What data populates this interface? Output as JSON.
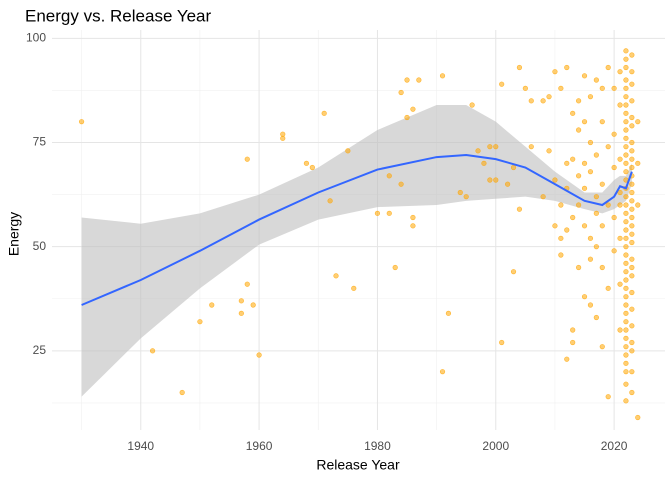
{
  "chart_data": {
    "type": "scatter",
    "title": "Energy vs. Release Year",
    "x_label": "Release Year",
    "y_label": "Energy",
    "xlim": [
      1925,
      2028.6
    ],
    "ylim": [
      6,
      102
    ],
    "xticks": [
      1940,
      1960,
      1980,
      2000,
      2020
    ],
    "yticks": [
      25,
      50,
      75,
      100
    ],
    "x_minor_grid": [
      1930,
      1950,
      1970,
      1990,
      2010
    ],
    "y_minor_grid": [
      12.5,
      37.5,
      62.5,
      87.5
    ],
    "grid": true,
    "point_color": "#FFA500",
    "line_color": "#3366FF",
    "band_color": "#BEBEBE",
    "points": [
      {
        "x": 1930,
        "y": 80
      },
      {
        "x": 1942,
        "y": 25
      },
      {
        "x": 1947,
        "y": 15
      },
      {
        "x": 1950,
        "y": 32
      },
      {
        "x": 1952,
        "y": 36
      },
      {
        "x": 1957,
        "y": 37
      },
      {
        "x": 1957,
        "y": 34
      },
      {
        "x": 1958,
        "y": 41
      },
      {
        "x": 1958,
        "y": 71
      },
      {
        "x": 1959,
        "y": 36
      },
      {
        "x": 1960,
        "y": 24
      },
      {
        "x": 1964,
        "y": 77
      },
      {
        "x": 1964,
        "y": 76
      },
      {
        "x": 1968,
        "y": 70
      },
      {
        "x": 1969,
        "y": 69
      },
      {
        "x": 1971,
        "y": 82
      },
      {
        "x": 1972,
        "y": 61
      },
      {
        "x": 1973,
        "y": 43
      },
      {
        "x": 1975,
        "y": 73
      },
      {
        "x": 1976,
        "y": 40
      },
      {
        "x": 1980,
        "y": 58
      },
      {
        "x": 1982,
        "y": 67
      },
      {
        "x": 1982,
        "y": 58
      },
      {
        "x": 1983,
        "y": 45
      },
      {
        "x": 1984,
        "y": 65
      },
      {
        "x": 1984,
        "y": 87
      },
      {
        "x": 1985,
        "y": 90
      },
      {
        "x": 1985,
        "y": 81
      },
      {
        "x": 1986,
        "y": 57
      },
      {
        "x": 1986,
        "y": 55
      },
      {
        "x": 1986,
        "y": 83
      },
      {
        "x": 1987,
        "y": 90
      },
      {
        "x": 1991,
        "y": 91
      },
      {
        "x": 1991,
        "y": 20
      },
      {
        "x": 1992,
        "y": 34
      },
      {
        "x": 1994,
        "y": 63
      },
      {
        "x": 1995,
        "y": 62
      },
      {
        "x": 1996,
        "y": 84
      },
      {
        "x": 1997,
        "y": 73
      },
      {
        "x": 1998,
        "y": 70
      },
      {
        "x": 1999,
        "y": 74
      },
      {
        "x": 1999,
        "y": 66
      },
      {
        "x": 2000,
        "y": 66
      },
      {
        "x": 2000,
        "y": 74
      },
      {
        "x": 2001,
        "y": 27
      },
      {
        "x": 2001,
        "y": 89
      },
      {
        "x": 2002,
        "y": 65
      },
      {
        "x": 2003,
        "y": 44
      },
      {
        "x": 2003,
        "y": 69
      },
      {
        "x": 2004,
        "y": 93
      },
      {
        "x": 2004,
        "y": 59
      },
      {
        "x": 2005,
        "y": 88
      },
      {
        "x": 2006,
        "y": 85
      },
      {
        "x": 2006,
        "y": 74
      },
      {
        "x": 2008,
        "y": 85
      },
      {
        "x": 2008,
        "y": 62
      },
      {
        "x": 2009,
        "y": 73
      },
      {
        "x": 2009,
        "y": 86
      },
      {
        "x": 2010,
        "y": 92
      },
      {
        "x": 2010,
        "y": 66
      },
      {
        "x": 2010,
        "y": 55
      },
      {
        "x": 2011,
        "y": 60
      },
      {
        "x": 2011,
        "y": 52
      },
      {
        "x": 2011,
        "y": 48
      },
      {
        "x": 2011,
        "y": 88
      },
      {
        "x": 2012,
        "y": 93
      },
      {
        "x": 2012,
        "y": 70
      },
      {
        "x": 2012,
        "y": 64
      },
      {
        "x": 2012,
        "y": 23
      },
      {
        "x": 2012,
        "y": 54
      },
      {
        "x": 2013,
        "y": 82
      },
      {
        "x": 2013,
        "y": 71
      },
      {
        "x": 2013,
        "y": 57
      },
      {
        "x": 2013,
        "y": 30
      },
      {
        "x": 2013,
        "y": 27
      },
      {
        "x": 2014,
        "y": 85
      },
      {
        "x": 2014,
        "y": 78
      },
      {
        "x": 2014,
        "y": 67
      },
      {
        "x": 2014,
        "y": 45
      },
      {
        "x": 2014,
        "y": 60
      },
      {
        "x": 2015,
        "y": 91
      },
      {
        "x": 2015,
        "y": 80
      },
      {
        "x": 2015,
        "y": 70
      },
      {
        "x": 2015,
        "y": 38
      },
      {
        "x": 2015,
        "y": 55
      },
      {
        "x": 2015,
        "y": 64
      },
      {
        "x": 2016,
        "y": 86
      },
      {
        "x": 2016,
        "y": 75
      },
      {
        "x": 2016,
        "y": 52
      },
      {
        "x": 2016,
        "y": 47
      },
      {
        "x": 2016,
        "y": 36
      },
      {
        "x": 2016,
        "y": 68
      },
      {
        "x": 2017,
        "y": 90
      },
      {
        "x": 2017,
        "y": 72
      },
      {
        "x": 2017,
        "y": 62
      },
      {
        "x": 2017,
        "y": 50
      },
      {
        "x": 2017,
        "y": 33
      },
      {
        "x": 2017,
        "y": 58
      },
      {
        "x": 2018,
        "y": 88
      },
      {
        "x": 2018,
        "y": 80
      },
      {
        "x": 2018,
        "y": 65
      },
      {
        "x": 2018,
        "y": 45
      },
      {
        "x": 2018,
        "y": 26
      },
      {
        "x": 2018,
        "y": 55
      },
      {
        "x": 2019,
        "y": 93
      },
      {
        "x": 2019,
        "y": 74
      },
      {
        "x": 2019,
        "y": 14
      },
      {
        "x": 2019,
        "y": 40
      },
      {
        "x": 2019,
        "y": 60
      },
      {
        "x": 2020,
        "y": 88
      },
      {
        "x": 2020,
        "y": 77
      },
      {
        "x": 2020,
        "y": 57
      },
      {
        "x": 2020,
        "y": 49
      },
      {
        "x": 2020,
        "y": 69
      },
      {
        "x": 2021,
        "y": 92
      },
      {
        "x": 2021,
        "y": 84
      },
      {
        "x": 2021,
        "y": 71
      },
      {
        "x": 2021,
        "y": 63
      },
      {
        "x": 2021,
        "y": 52
      },
      {
        "x": 2021,
        "y": 41
      },
      {
        "x": 2021,
        "y": 30
      },
      {
        "x": 2021,
        "y": 60
      },
      {
        "x": 2022,
        "y": 97
      },
      {
        "x": 2022,
        "y": 95
      },
      {
        "x": 2022,
        "y": 93
      },
      {
        "x": 2022,
        "y": 90
      },
      {
        "x": 2022,
        "y": 88
      },
      {
        "x": 2022,
        "y": 86
      },
      {
        "x": 2022,
        "y": 84
      },
      {
        "x": 2022,
        "y": 82
      },
      {
        "x": 2022,
        "y": 80
      },
      {
        "x": 2022,
        "y": 78
      },
      {
        "x": 2022,
        "y": 76
      },
      {
        "x": 2022,
        "y": 74
      },
      {
        "x": 2022,
        "y": 72
      },
      {
        "x": 2022,
        "y": 70
      },
      {
        "x": 2022,
        "y": 68
      },
      {
        "x": 2022,
        "y": 66
      },
      {
        "x": 2022,
        "y": 64
      },
      {
        "x": 2022,
        "y": 62
      },
      {
        "x": 2022,
        "y": 60
      },
      {
        "x": 2022,
        "y": 58
      },
      {
        "x": 2022,
        "y": 56
      },
      {
        "x": 2022,
        "y": 54
      },
      {
        "x": 2022,
        "y": 52
      },
      {
        "x": 2022,
        "y": 50
      },
      {
        "x": 2022,
        "y": 48
      },
      {
        "x": 2022,
        "y": 46
      },
      {
        "x": 2022,
        "y": 44
      },
      {
        "x": 2022,
        "y": 42
      },
      {
        "x": 2022,
        "y": 40
      },
      {
        "x": 2022,
        "y": 38
      },
      {
        "x": 2022,
        "y": 36
      },
      {
        "x": 2022,
        "y": 34
      },
      {
        "x": 2022,
        "y": 32
      },
      {
        "x": 2022,
        "y": 30
      },
      {
        "x": 2022,
        "y": 28
      },
      {
        "x": 2022,
        "y": 26
      },
      {
        "x": 2022,
        "y": 24
      },
      {
        "x": 2022,
        "y": 22
      },
      {
        "x": 2022,
        "y": 20
      },
      {
        "x": 2022,
        "y": 17
      },
      {
        "x": 2022,
        "y": 13
      },
      {
        "x": 2023,
        "y": 96
      },
      {
        "x": 2023,
        "y": 92
      },
      {
        "x": 2023,
        "y": 89
      },
      {
        "x": 2023,
        "y": 85
      },
      {
        "x": 2023,
        "y": 81
      },
      {
        "x": 2023,
        "y": 79
      },
      {
        "x": 2023,
        "y": 75
      },
      {
        "x": 2023,
        "y": 73
      },
      {
        "x": 2023,
        "y": 71
      },
      {
        "x": 2023,
        "y": 69
      },
      {
        "x": 2023,
        "y": 67
      },
      {
        "x": 2023,
        "y": 65
      },
      {
        "x": 2023,
        "y": 63
      },
      {
        "x": 2023,
        "y": 61
      },
      {
        "x": 2023,
        "y": 59
      },
      {
        "x": 2023,
        "y": 57
      },
      {
        "x": 2023,
        "y": 55
      },
      {
        "x": 2023,
        "y": 53
      },
      {
        "x": 2023,
        "y": 51
      },
      {
        "x": 2023,
        "y": 47
      },
      {
        "x": 2023,
        "y": 45
      },
      {
        "x": 2023,
        "y": 43
      },
      {
        "x": 2023,
        "y": 39
      },
      {
        "x": 2023,
        "y": 35
      },
      {
        "x": 2023,
        "y": 31
      },
      {
        "x": 2023,
        "y": 27
      },
      {
        "x": 2023,
        "y": 25
      },
      {
        "x": 2023,
        "y": 20
      },
      {
        "x": 2023,
        "y": 15
      },
      {
        "x": 2024,
        "y": 9
      },
      {
        "x": 2024,
        "y": 70
      },
      {
        "x": 2024,
        "y": 80
      },
      {
        "x": 2024,
        "y": 60
      }
    ],
    "smooth": {
      "x": [
        1930,
        1940,
        1950,
        1960,
        1970,
        1980,
        1990,
        1995,
        2000,
        2005,
        2010,
        2015,
        2018,
        2020,
        2021,
        2022,
        2023
      ],
      "y": [
        36,
        42,
        49,
        56.5,
        63,
        68.5,
        71.5,
        72,
        71,
        69,
        65,
        61,
        60,
        62,
        64.5,
        64,
        68
      ],
      "upper": [
        57,
        55.5,
        58,
        62.5,
        69,
        78,
        84,
        84,
        80,
        74,
        68,
        63,
        63,
        66,
        67,
        67,
        70
      ],
      "lower": [
        14,
        28,
        40,
        50.5,
        56.5,
        59.5,
        60,
        61,
        61.5,
        62,
        61,
        59,
        58,
        59,
        60,
        61,
        65
      ]
    }
  }
}
